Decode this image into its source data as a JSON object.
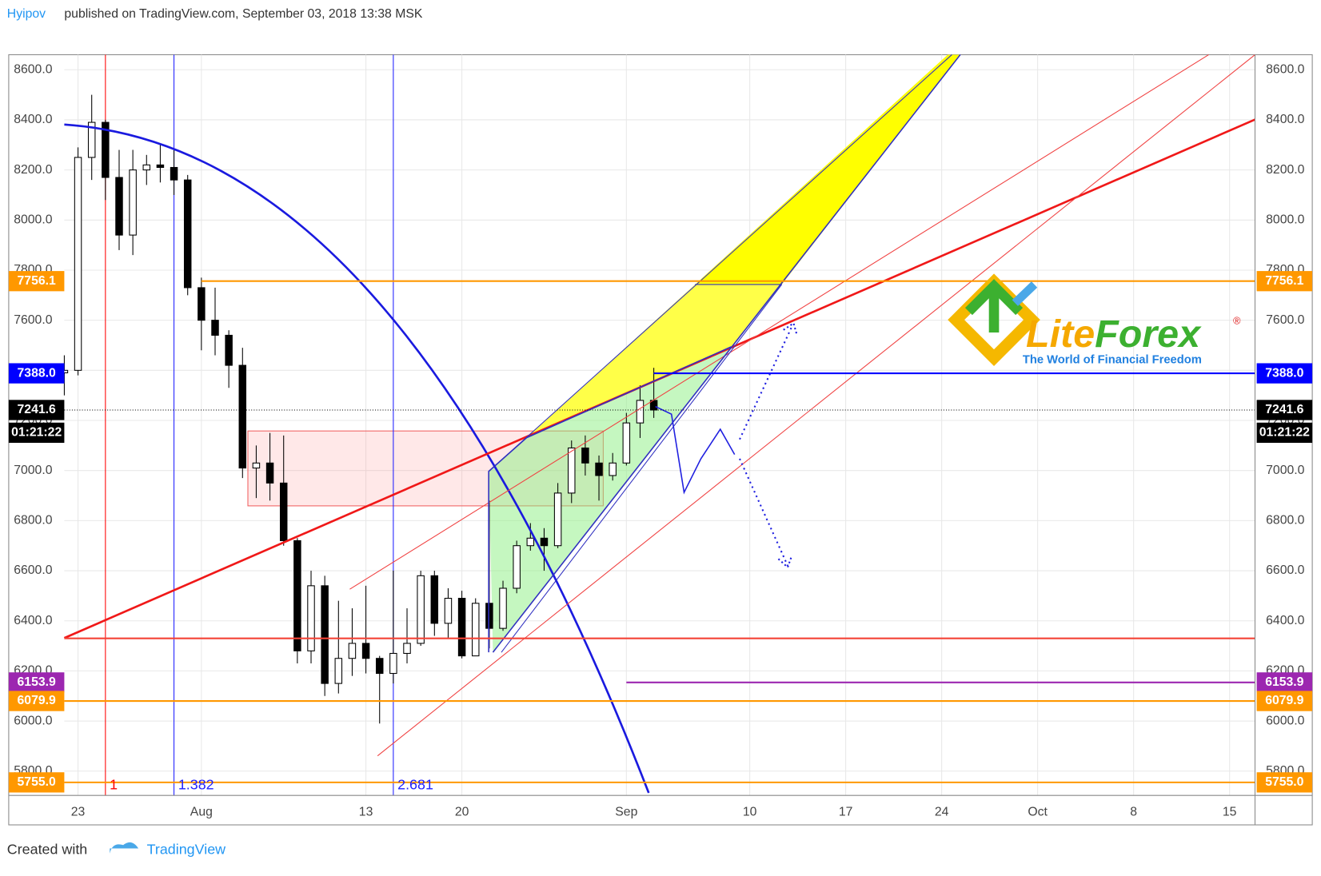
{
  "header": {
    "author": "Hyipov",
    "text": "published on TradingView.com, September 03, 2018 13:38 MSK"
  },
  "footer": {
    "text": "Created with",
    "brand": "TradingView"
  },
  "logo": {
    "name_a": "Lite",
    "name_b": "Forex",
    "mark": "®",
    "slogan": "The World of Financial Freedom"
  },
  "chart_data": {
    "type": "candlestick",
    "categories": [
      null,
      "23",
      null,
      null,
      null,
      null,
      null,
      null,
      null,
      null,
      "Aug",
      null,
      null,
      null,
      null,
      null,
      null,
      null,
      null,
      null,
      null,
      null,
      "13",
      null,
      null,
      null,
      null,
      null,
      null,
      "20",
      null,
      null,
      null,
      null,
      null,
      null,
      null,
      null,
      null,
      null,
      null,
      "Sep",
      null,
      null,
      null,
      null,
      null,
      null,
      null,
      null,
      "10",
      null,
      null,
      null,
      null,
      null,
      null,
      "17",
      null,
      null,
      null,
      null,
      null,
      null,
      "24",
      null,
      null,
      null,
      null,
      null,
      null,
      "Oct",
      null,
      null,
      null,
      null,
      null,
      null,
      "8",
      null,
      null,
      null,
      null,
      null,
      null,
      "15",
      null,
      null
    ],
    "open": [
      7390,
      7400,
      8250,
      8390,
      8170,
      7940,
      8200,
      8220,
      8210,
      8160,
      7730,
      7600,
      7540,
      7420,
      7010,
      7030,
      6950,
      6720,
      6280,
      6540,
      6150,
      6250,
      6310,
      6250,
      6190,
      6270,
      6310,
      6580,
      6390,
      6490,
      6260,
      6470,
      6370,
      6530,
      6700,
      6730,
      6700,
      6910,
      7090,
      7030,
      6980,
      7030,
      7190,
      7280,
      null,
      null,
      null,
      null,
      null,
      null,
      null,
      null,
      null,
      null,
      null,
      null,
      null,
      null,
      null,
      null,
      null,
      null,
      null,
      null,
      null,
      null,
      null,
      null,
      null,
      null,
      null,
      null,
      null,
      null,
      null,
      null,
      null,
      null,
      null,
      null,
      null,
      null,
      null,
      null,
      null,
      null,
      null,
      null
    ],
    "high": [
      7460,
      8290,
      8500,
      8400,
      8280,
      8280,
      8260,
      8300,
      8280,
      8180,
      7770,
      7730,
      7560,
      7490,
      7100,
      7150,
      7140,
      6730,
      6600,
      6580,
      6480,
      6450,
      6540,
      6260,
      6600,
      6450,
      6600,
      6600,
      6530,
      6520,
      6490,
      6880,
      6560,
      6720,
      6790,
      6770,
      6950,
      7120,
      7140,
      7060,
      7070,
      7230,
      7340,
      7410,
      null,
      null,
      null,
      null,
      null,
      null,
      null,
      null,
      null,
      null,
      null,
      null,
      null,
      null,
      null,
      null,
      null,
      null,
      null,
      null,
      null,
      null,
      null,
      null,
      null,
      null,
      null,
      null,
      null,
      null,
      null,
      null,
      null,
      null,
      null,
      null,
      null,
      null,
      null,
      null,
      null,
      null,
      null,
      null
    ],
    "low": [
      7300,
      7380,
      8160,
      8080,
      7880,
      7860,
      8140,
      8150,
      8100,
      7700,
      7480,
      7460,
      7330,
      6970,
      6890,
      6880,
      6700,
      6230,
      6230,
      6100,
      6110,
      6180,
      6190,
      5990,
      6150,
      6230,
      6300,
      6340,
      6330,
      6250,
      6260,
      6290,
      6360,
      6510,
      6680,
      6600,
      6690,
      6870,
      6980,
      6880,
      6960,
      7020,
      7130,
      7210,
      null,
      null,
      null,
      null,
      null,
      null,
      null,
      null,
      null,
      null,
      null,
      null,
      null,
      null,
      null,
      null,
      null,
      null,
      null,
      null,
      null,
      null,
      null,
      null,
      null,
      null,
      null,
      null,
      null,
      null,
      null,
      null,
      null,
      null,
      null,
      null,
      null,
      null,
      null,
      null,
      null,
      null,
      null,
      null
    ],
    "close": [
      7400,
      8250,
      8390,
      8170,
      7940,
      8200,
      8220,
      8210,
      8160,
      7730,
      7600,
      7540,
      7420,
      7010,
      7030,
      6950,
      6720,
      6280,
      6540,
      6150,
      6250,
      6310,
      6250,
      6190,
      6270,
      6310,
      6580,
      6390,
      6490,
      6260,
      6470,
      6370,
      6530,
      6700,
      6730,
      6700,
      6910,
      7090,
      7030,
      6980,
      7030,
      7190,
      7280,
      7241.6,
      null,
      null,
      null,
      null,
      null,
      null,
      null,
      null,
      null,
      null,
      null,
      null,
      null,
      null,
      null,
      null,
      null,
      null,
      null,
      null,
      null,
      null,
      null,
      null,
      null,
      null,
      null,
      null,
      null,
      null,
      null,
      null,
      null,
      null,
      null,
      null,
      null,
      null,
      null,
      null,
      null,
      null,
      null,
      null
    ],
    "up_color": "#ffffff",
    "down_color": "#000000",
    "ylim": [
      5703,
      8660
    ],
    "yticks": [
      {
        "value": 5800,
        "label": "5800.0"
      },
      {
        "value": 6000,
        "label": "6000.0"
      },
      {
        "value": 6200,
        "label": "6200.0"
      },
      {
        "value": 6400,
        "label": "6400.0"
      },
      {
        "value": 6600,
        "label": "6600.0"
      },
      {
        "value": 6800,
        "label": "6800.0"
      },
      {
        "value": 7000,
        "label": "7000.0"
      },
      {
        "value": 7200,
        "label": "7200.0"
      },
      {
        "value": 7400,
        "label": "7400.0"
      },
      {
        "value": 7600,
        "label": "7600.0"
      },
      {
        "value": 7800,
        "label": "7800.0"
      },
      {
        "value": 8000,
        "label": "8000.0"
      },
      {
        "value": 8200,
        "label": "8200.0"
      },
      {
        "value": 8400,
        "label": "8400.0"
      },
      {
        "value": 8600,
        "label": "8600.0"
      }
    ],
    "grid": true,
    "levels": [
      {
        "value": 7756.1,
        "color": "#ff9800",
        "from": 10
      },
      {
        "value": 7388,
        "label": "7388.0",
        "color": "#0000ff",
        "from": 43
      },
      {
        "value": 6153.9,
        "color": "#9c27b0",
        "from": 41
      },
      {
        "value": 6079.9,
        "color": "#ff9800",
        "from": 0
      },
      {
        "value": 5755,
        "label": "5755.0",
        "color": "#ff9800",
        "from": 0
      },
      {
        "value": 6330,
        "color": "#f44336",
        "from": 0,
        "box": false
      }
    ],
    "current": {
      "value": 7241.6,
      "countdown": "01:21:22"
    },
    "time_lines": [
      {
        "x": 3,
        "label": "1",
        "color": "#ff0000"
      },
      {
        "x": 8,
        "label": "1.382",
        "color": "#2020ff"
      },
      {
        "x": 24,
        "label": "2.681",
        "color": "#2020ff"
      }
    ]
  }
}
